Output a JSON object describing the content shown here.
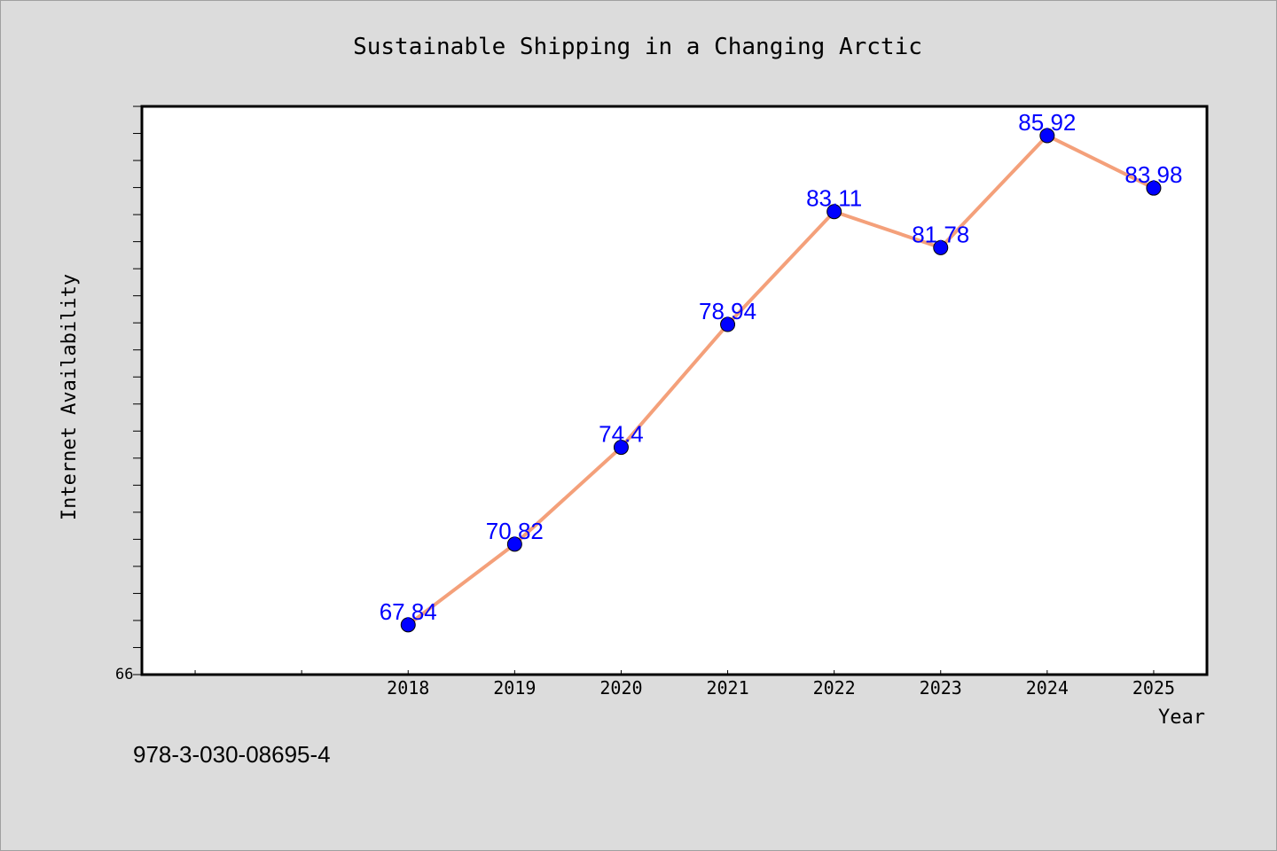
{
  "chart_data": {
    "type": "line",
    "title": "Sustainable Shipping in a Changing Arctic",
    "xlabel": "Year",
    "ylabel": "Internet Availability",
    "categories": [
      "2018",
      "2019",
      "2020",
      "2021",
      "2022",
      "2023",
      "2024",
      "2025"
    ],
    "series": [
      {
        "values": [
          67.84,
          70.82,
          74.4,
          78.94,
          83.11,
          81.78,
          85.92,
          83.98
        ]
      }
    ],
    "y_tick_label": "66",
    "ylim": [
      66,
      87
    ],
    "grid": false,
    "line_color": "#f4a07a",
    "marker_color": "#0000ff",
    "label_color": "#0000ff"
  },
  "footer": {
    "code": "978-3-030-08695-4"
  }
}
